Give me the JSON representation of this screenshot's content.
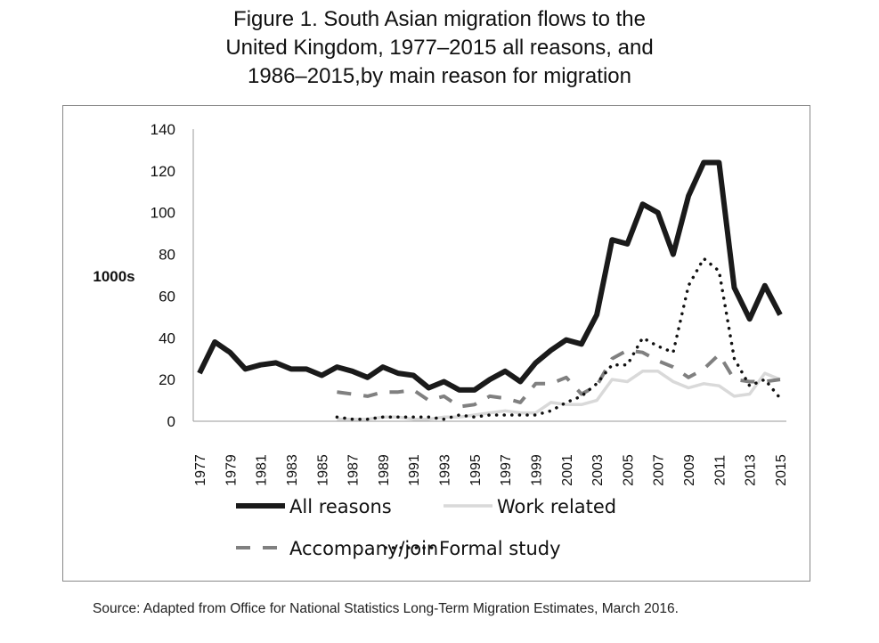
{
  "chart_data": {
    "type": "line",
    "title_lines": [
      "Figure 1. South Asian migration flows to the",
      "United Kingdom, 1977–2015 all reasons, and",
      "1986–2015,by main reason for migration"
    ],
    "ylabel": "1000s",
    "xlabel": "",
    "ylim": [
      0,
      140
    ],
    "yticks": [
      0,
      20,
      40,
      60,
      80,
      100,
      120,
      140
    ],
    "xlim": [
      1977,
      2015
    ],
    "xtick_labels": [
      "1977",
      "1979",
      "1981",
      "1983",
      "1985",
      "1987",
      "1989",
      "1991",
      "1993",
      "1995",
      "1997",
      "1999",
      "2001",
      "2003",
      "2005",
      "2007",
      "2009",
      "2011",
      "2013",
      "2015"
    ],
    "grid": false,
    "legend_placement": "bottom",
    "series": [
      {
        "name": "All reasons",
        "style": "solid-thick",
        "color": "#1a1a1a",
        "start": 1977,
        "values": [
          23,
          38,
          33,
          25,
          27,
          28,
          25,
          25,
          22,
          26,
          24,
          21,
          26,
          23,
          22,
          16,
          19,
          15,
          15,
          20,
          24,
          19,
          28,
          34,
          39,
          37,
          51,
          87,
          85,
          104,
          100,
          80,
          108,
          124,
          124,
          64,
          49,
          65,
          51
        ]
      },
      {
        "name": "Work related",
        "style": "solid-light",
        "color": "#d9d9d9",
        "start": 1986,
        "values": [
          1,
          1,
          1,
          2,
          2,
          1,
          1,
          2,
          2,
          3,
          4,
          5,
          4,
          4,
          9,
          8,
          8,
          10,
          20,
          19,
          24,
          24,
          19,
          16,
          18,
          17,
          12,
          13,
          23,
          20
        ]
      },
      {
        "name": "Accompany/join",
        "style": "dashed",
        "color": "#808080",
        "start": 1986,
        "values": [
          14,
          13,
          12,
          14,
          14,
          15,
          10,
          12,
          7,
          8,
          12,
          11,
          9,
          18,
          18,
          21,
          13,
          17,
          30,
          34,
          33,
          29,
          26,
          21,
          25,
          32,
          20,
          19,
          19,
          20
        ]
      },
      {
        "name": "Formal study",
        "style": "dotted",
        "color": "#111111",
        "start": 1986,
        "values": [
          2,
          1,
          1,
          2,
          2,
          2,
          2,
          1,
          3,
          2,
          3,
          3,
          3,
          3,
          5,
          9,
          12,
          18,
          27,
          27,
          40,
          36,
          33,
          65,
          78,
          72,
          30,
          17,
          20,
          11
        ]
      }
    ]
  },
  "source": "Source: Adapted from Office for National Statistics Long-Term Migration Estimates, March 2016."
}
